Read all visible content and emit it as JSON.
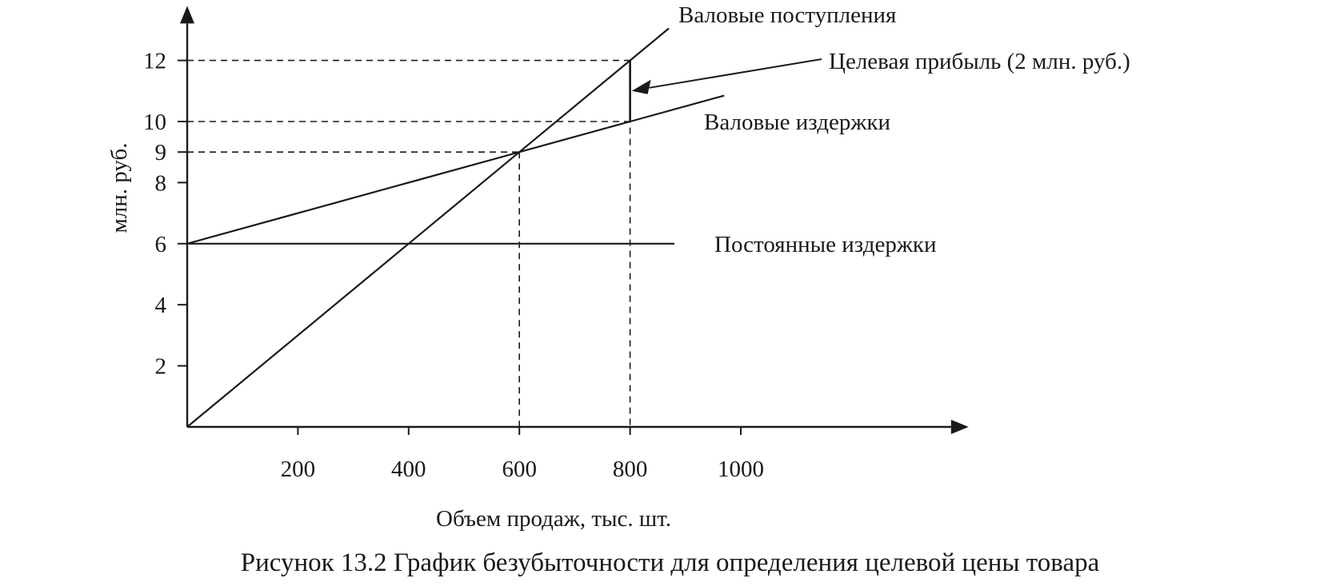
{
  "chart_data": {
    "type": "line",
    "title": "",
    "caption": "Рисунок 13.2 График безубыточности для определения целевой цены товара",
    "xlabel": "Объем продаж, тыс. шт.",
    "ylabel": "млн. руб.",
    "xlim": [
      0,
      1400
    ],
    "ylim": [
      0,
      13
    ],
    "x_ticks": [
      200,
      400,
      600,
      800,
      1000
    ],
    "y_ticks": [
      2,
      4,
      6,
      8,
      9,
      10,
      12
    ],
    "grid": false,
    "series": [
      {
        "name": "Валовые поступления",
        "points": [
          [
            0,
            0
          ],
          [
            600,
            9
          ],
          [
            800,
            12
          ],
          [
            870,
            13.05
          ]
        ]
      },
      {
        "name": "Валовые издержки",
        "points": [
          [
            0,
            6
          ],
          [
            600,
            9
          ],
          [
            800,
            10
          ],
          [
            970,
            10.85
          ]
        ]
      },
      {
        "name": "Постоянные издержки",
        "points": [
          [
            0,
            6
          ],
          [
            880,
            6
          ]
        ]
      }
    ],
    "reference_lines": [
      {
        "from": [
          0,
          12
        ],
        "to": [
          800,
          12
        ]
      },
      {
        "from": [
          0,
          10
        ],
        "to": [
          800,
          10
        ]
      },
      {
        "from": [
          0,
          9
        ],
        "to": [
          600,
          9
        ]
      },
      {
        "from": [
          600,
          9
        ],
        "to": [
          600,
          0
        ]
      },
      {
        "from": [
          800,
          12
        ],
        "to": [
          800,
          0
        ]
      }
    ],
    "profit_segment": {
      "x": 800,
      "from": 10,
      "to": 12
    },
    "annotations": [
      {
        "text": "Целевая прибыль (2 млн. руб.)",
        "at": [
          800,
          11
        ]
      }
    ],
    "colors": {
      "ink": "#1a1a1a",
      "background": "#ffffff"
    }
  }
}
